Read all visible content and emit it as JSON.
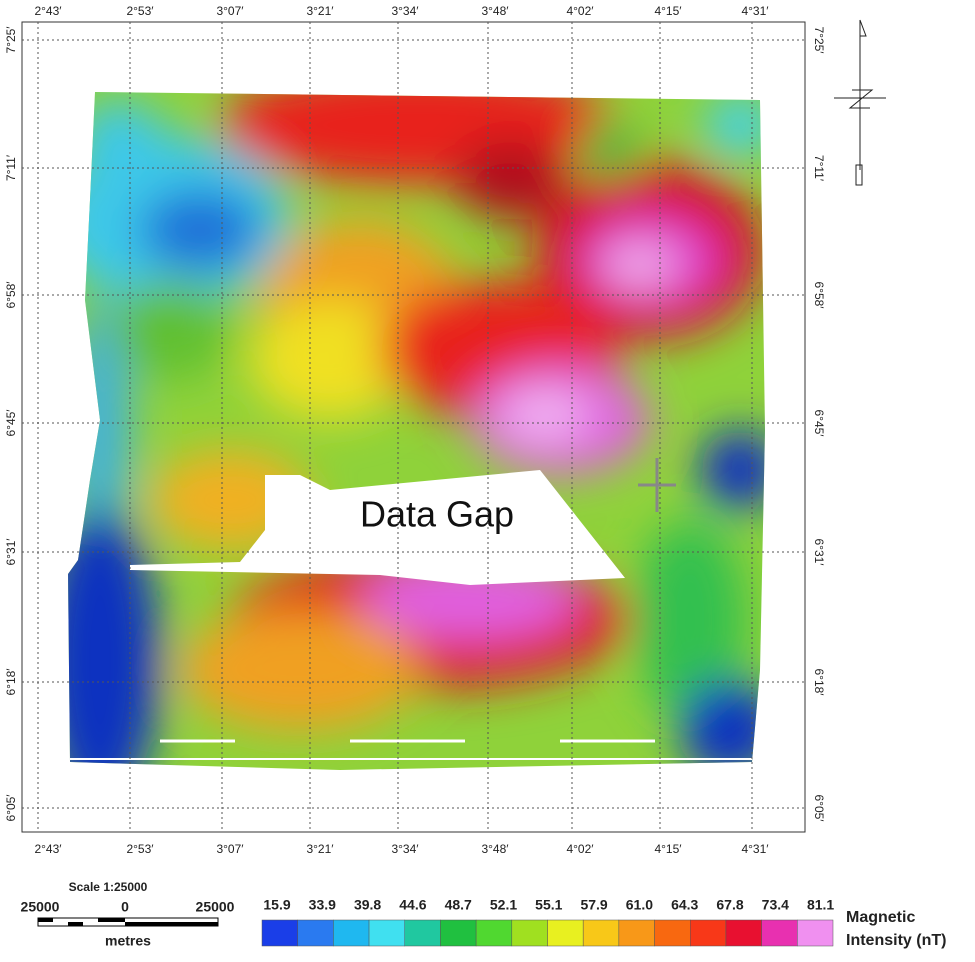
{
  "map": {
    "longitude_labels_top": [
      "2°43′",
      "2°53′",
      "3°07′",
      "3°21′",
      "3°34′",
      "3°48′",
      "4°02′",
      "4°15′",
      "4°31′"
    ],
    "longitude_labels_bottom": [
      "2°43′",
      "2°53′",
      "3°07′",
      "3°21′",
      "3°34′",
      "3°48′",
      "4°02′",
      "4°15′",
      "4°31′"
    ],
    "latitude_labels_left": [
      "7°25′",
      "7°11′",
      "6°58′",
      "6°45′",
      "6°31′",
      "6°18′",
      "6°05′"
    ],
    "latitude_labels_right": [
      "7°25′",
      "7°11′",
      "6°58′",
      "6°45′",
      "6°31′",
      "6°18′",
      "6°05′"
    ],
    "annotation": "Data Gap"
  },
  "scale": {
    "title": "Scale 1:25000",
    "left": "25000",
    "center": "0",
    "right": "25000",
    "unit": "metres"
  },
  "legend": {
    "labels": [
      "15.9",
      "33.9",
      "39.8",
      "44.6",
      "48.7",
      "52.1",
      "55.1",
      "57.9",
      "61.0",
      "64.3",
      "67.8",
      "73.4",
      "81.1"
    ],
    "title_line1": "Magnetic",
    "title_line2": "Intensity (nT)"
  }
}
